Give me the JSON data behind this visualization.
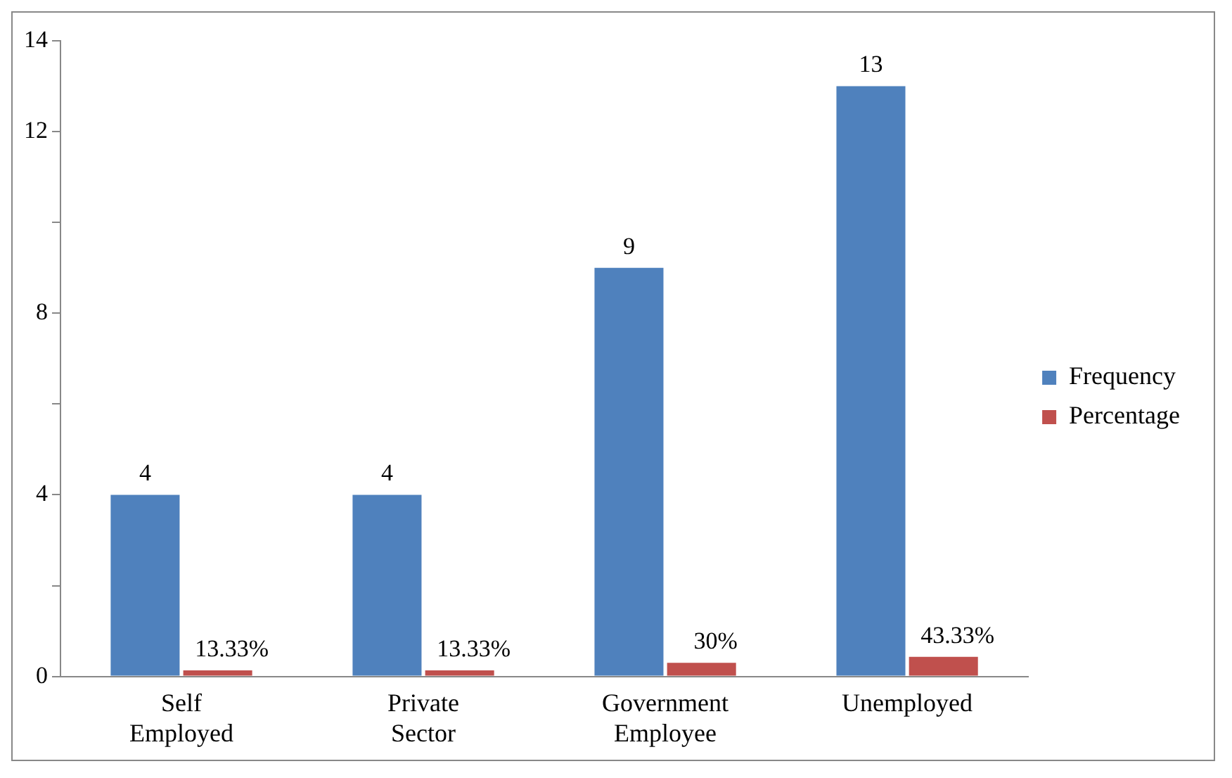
{
  "chart_data": {
    "type": "bar",
    "categories": [
      "Self Employed",
      "Private Sector",
      "Government Employee",
      "Unemployed"
    ],
    "series": [
      {
        "name": "Frequency",
        "color": "#4f81bd",
        "values": [
          4,
          4,
          9,
          13
        ],
        "value_labels": [
          "4",
          "4",
          "9",
          "13"
        ]
      },
      {
        "name": "Percentage",
        "color": "#c0504d",
        "values": [
          0.1333,
          0.1333,
          0.3,
          0.4333
        ],
        "value_labels": [
          "13.33%",
          "13.33%",
          "30%",
          "43.33%"
        ]
      }
    ],
    "ylim": [
      0,
      14
    ],
    "yticks": [
      0,
      {
        "value": 2,
        "label": null
      },
      4,
      {
        "value": 6,
        "label": null
      },
      8,
      {
        "value": 10,
        "label": null
      },
      12,
      14
    ],
    "grid": false,
    "legend": "right"
  }
}
